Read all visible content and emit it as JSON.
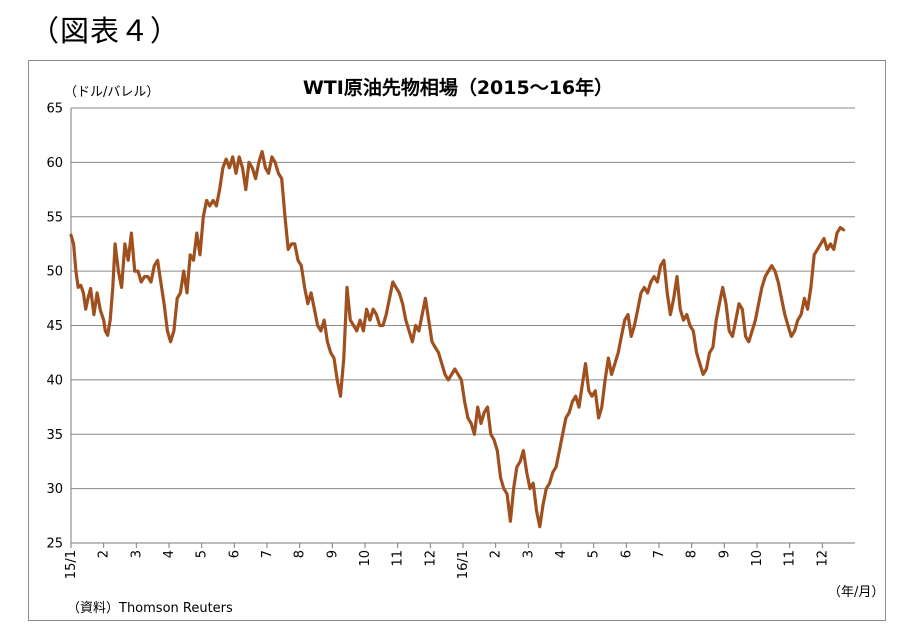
{
  "figure_label": "（図表４）",
  "chart_data": {
    "type": "line",
    "title": "WTI原油先物相場（2015～16年）",
    "ylabel": "（ドル/バレル）",
    "xlabel": "（年/月）",
    "source": "（資料）Thomson Reuters",
    "ylim": [
      25,
      65
    ],
    "yticks": [
      25,
      30,
      35,
      40,
      45,
      50,
      55,
      60,
      65
    ],
    "xticks": [
      "15/1",
      "2",
      "3",
      "4",
      "5",
      "6",
      "7",
      "8",
      "9",
      "10",
      "11",
      "12",
      "16/1",
      "2",
      "3",
      "4",
      "5",
      "6",
      "7",
      "8",
      "9",
      "10",
      "11",
      "12"
    ],
    "grid": true,
    "legend": "none",
    "line_color": "#a0501e",
    "series": [
      {
        "x_month_index": [
          0.0,
          0.08,
          0.15,
          0.22,
          0.3,
          0.38,
          0.45,
          0.52,
          0.6,
          0.7,
          0.8,
          0.9,
          1.0,
          1.05,
          1.12,
          1.2,
          1.28,
          1.35,
          1.45,
          1.55,
          1.65,
          1.75,
          1.85,
          1.95,
          2.05,
          2.15,
          2.25,
          2.35,
          2.45,
          2.55,
          2.65,
          2.75,
          2.85,
          2.95,
          3.05,
          3.15,
          3.25,
          3.35,
          3.45,
          3.55,
          3.65,
          3.75,
          3.85,
          3.95,
          4.05,
          4.15,
          4.25,
          4.35,
          4.45,
          4.55,
          4.65,
          4.75,
          4.85,
          4.95,
          5.05,
          5.15,
          5.25,
          5.35,
          5.45,
          5.55,
          5.65,
          5.75,
          5.85,
          5.95,
          6.05,
          6.15,
          6.25,
          6.35,
          6.45,
          6.55,
          6.65,
          6.75,
          6.85,
          6.95,
          7.05,
          7.15,
          7.25,
          7.35,
          7.45,
          7.55,
          7.65,
          7.75,
          7.85,
          7.95,
          8.05,
          8.15,
          8.25,
          8.35,
          8.45,
          8.55,
          8.65,
          8.75,
          8.85,
          8.95,
          9.05,
          9.15,
          9.25,
          9.35,
          9.45,
          9.55,
          9.65,
          9.75,
          9.85,
          9.95,
          10.05,
          10.15,
          10.25,
          10.35,
          10.45,
          10.55,
          10.65,
          10.75,
          10.85,
          10.95,
          11.05,
          11.15,
          11.25,
          11.35,
          11.45,
          11.55,
          11.65,
          11.75,
          11.85,
          11.95,
          12.05,
          12.15,
          12.25,
          12.35,
          12.45,
          12.55,
          12.65,
          12.75,
          12.85,
          12.95,
          13.05,
          13.15,
          13.25,
          13.35,
          13.45,
          13.55,
          13.65,
          13.75,
          13.85,
          13.95,
          14.05,
          14.15,
          14.25,
          14.35,
          14.45,
          14.55,
          14.65,
          14.75,
          14.85,
          14.95,
          15.05,
          15.15,
          15.25,
          15.35,
          15.45,
          15.55,
          15.65,
          15.75,
          15.85,
          15.95,
          16.05,
          16.15,
          16.25,
          16.35,
          16.45,
          16.55,
          16.65,
          16.75,
          16.85,
          16.95,
          17.05,
          17.15,
          17.25,
          17.35,
          17.45,
          17.55,
          17.65,
          17.75,
          17.85,
          17.95,
          18.05,
          18.15,
          18.25,
          18.35,
          18.45,
          18.55,
          18.65,
          18.75,
          18.85,
          18.95,
          19.05,
          19.15,
          19.25,
          19.35,
          19.45,
          19.55,
          19.65,
          19.75,
          19.85,
          19.95,
          20.05,
          20.15,
          20.25,
          20.35,
          20.45,
          20.55,
          20.65,
          20.75,
          20.85,
          20.95,
          21.05,
          21.15,
          21.25,
          21.35,
          21.45,
          21.55,
          21.65,
          21.75,
          21.85,
          21.95,
          22.05,
          22.15,
          22.25,
          22.35,
          22.45,
          22.55,
          22.65,
          22.75,
          22.85,
          22.95,
          23.05,
          23.15,
          23.25,
          23.35,
          23.45,
          23.55,
          23.65,
          23.75,
          23.9
        ],
        "values": [
          53.3,
          52.5,
          50.0,
          48.5,
          48.7,
          48.0,
          46.5,
          47.5,
          48.4,
          46.0,
          48.0,
          46.4,
          45.5,
          44.5,
          44.1,
          45.5,
          48.5,
          52.5,
          50.0,
          48.5,
          52.5,
          51.0,
          53.5,
          50.0,
          50.0,
          49.0,
          49.5,
          49.5,
          49.0,
          50.5,
          51.0,
          49.0,
          47.0,
          44.5,
          43.5,
          44.5,
          47.5,
          48.0,
          50.0,
          48.0,
          51.5,
          51.0,
          53.5,
          51.5,
          55.0,
          56.5,
          56.0,
          56.5,
          56.0,
          57.5,
          59.5,
          60.3,
          59.5,
          60.5,
          59.0,
          60.5,
          59.5,
          57.5,
          60.0,
          59.5,
          58.5,
          60.0,
          61.0,
          59.5,
          59.0,
          60.5,
          60.0,
          59.0,
          58.5,
          55.0,
          52.0,
          52.5,
          52.5,
          51.0,
          50.5,
          48.5,
          47.0,
          48.0,
          46.5,
          45.0,
          44.5,
          45.5,
          43.5,
          42.5,
          42.0,
          40.0,
          38.5,
          42.0,
          48.5,
          45.5,
          45.0,
          44.5,
          45.5,
          44.5,
          46.5,
          45.5,
          46.5,
          46.0,
          45.0,
          45.0,
          46.0,
          47.5,
          49.0,
          48.5,
          48.0,
          47.0,
          45.5,
          44.5,
          43.5,
          45.0,
          44.5,
          46.0,
          47.5,
          45.5,
          43.5,
          43.0,
          42.5,
          41.5,
          40.5,
          40.0,
          40.5,
          41.0,
          40.5,
          40.0,
          38.0,
          36.5,
          36.0,
          35.0,
          37.5,
          36.0,
          37.0,
          37.5,
          35.0,
          34.5,
          33.5,
          31.0,
          30.0,
          29.5,
          27.0,
          30.0,
          32.0,
          32.5,
          33.5,
          31.5,
          30.0,
          30.5,
          28.0,
          26.5,
          28.5,
          30.0,
          30.5,
          31.5,
          32.0,
          33.5,
          35.0,
          36.5,
          37.0,
          38.0,
          38.5,
          37.5,
          39.5,
          41.5,
          39.0,
          38.5,
          39.0,
          36.5,
          37.5,
          40.0,
          42.0,
          40.5,
          41.5,
          42.5,
          44.0,
          45.5,
          46.0,
          44.0,
          45.0,
          46.5,
          48.0,
          48.5,
          48.0,
          49.0,
          49.5,
          49.0,
          50.5,
          51.0,
          48.0,
          46.0,
          47.5,
          49.5,
          46.5,
          45.5,
          46.0,
          45.0,
          44.5,
          42.5,
          41.5,
          40.5,
          41.0,
          42.5,
          43.0,
          45.5,
          47.0,
          48.5,
          47.0,
          44.5,
          44.0,
          45.5,
          47.0,
          46.5,
          44.0,
          43.5,
          44.5,
          45.5,
          47.0,
          48.5,
          49.5,
          50.0,
          50.5,
          50.0,
          49.0,
          47.5,
          46.0,
          45.0,
          44.0,
          44.5,
          45.5,
          46.0,
          47.5,
          46.5,
          48.5,
          51.5,
          52.0,
          52.5,
          53.0,
          52.0,
          52.5,
          52.0,
          53.5,
          54.0,
          53.8
        ]
      }
    ]
  }
}
